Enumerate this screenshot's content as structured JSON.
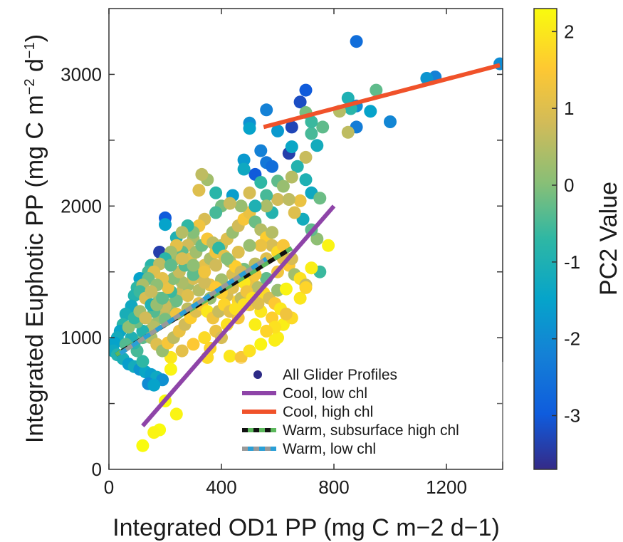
{
  "chart_data": {
    "type": "scatter",
    "xlabel": "Integrated OD1 PP (mg C m−2 d−1)",
    "ylabel": "Integrated Euphotic PP (mg C m",
    "ylabel_sup1": "−2",
    "ylabel_mid": " d",
    "ylabel_sup2": "−1",
    "ylabel_end": ")",
    "xlim": [
      0,
      1400
    ],
    "ylim": [
      0,
      3500
    ],
    "xticks": [
      0,
      400,
      800,
      1200
    ],
    "yticks": [
      0,
      1000,
      2000,
      3000
    ],
    "colorbar": {
      "label": "PC2 Value",
      "range": [
        -3.7,
        2.3
      ],
      "ticks": [
        -3,
        -2,
        -1,
        0,
        1,
        2
      ],
      "colormap": "parula"
    },
    "series": [
      {
        "name": "All Glider Profiles",
        "kind": "scatter",
        "color": "#2c2a86"
      },
      {
        "name": "Cool, low chl",
        "kind": "line",
        "color": "#8e44a8",
        "x": [
          120,
          800
        ],
        "y": [
          330,
          2000
        ]
      },
      {
        "name": "Cool, high chl",
        "kind": "line",
        "color": "#f0522a",
        "x": [
          550,
          1390
        ],
        "y": [
          2600,
          3070
        ]
      },
      {
        "name": "Warm, subsurface high chl",
        "kind": "line",
        "color": "#111111",
        "dash_color": "#5cb85c",
        "x": [
          25,
          650
        ],
        "y": [
          870,
          1680
        ]
      },
      {
        "name": "Warm, low chl",
        "kind": "line",
        "color": "#999999",
        "dash_color": "#2a9fd6",
        "x": [
          40,
          560
        ],
        "y": [
          880,
          1600
        ]
      }
    ],
    "points": [
      [
        880,
        3250,
        -2.6
      ],
      [
        1390,
        3080,
        -2.0
      ],
      [
        1160,
        2980,
        -2.2
      ],
      [
        1130,
        2970,
        -1.8
      ],
      [
        950,
        2880,
        -0.3
      ],
      [
        850,
        2820,
        -1.0
      ],
      [
        880,
        2760,
        -2.0
      ],
      [
        860,
        2740,
        -0.8
      ],
      [
        820,
        2720,
        0.5
      ],
      [
        930,
        2720,
        -1.5
      ],
      [
        1000,
        2640,
        -2.1
      ],
      [
        880,
        2600,
        -2.3
      ],
      [
        850,
        2560,
        0.6
      ],
      [
        760,
        2600,
        -0.3
      ],
      [
        720,
        2550,
        -0.5
      ],
      [
        700,
        2880,
        -3.0
      ],
      [
        680,
        2790,
        -3.2
      ],
      [
        650,
        2600,
        -3.3
      ],
      [
        640,
        2400,
        -3.4
      ],
      [
        560,
        2730,
        -2.2
      ],
      [
        600,
        2570,
        -1.7
      ],
      [
        700,
        2710,
        -0.1
      ],
      [
        720,
        2640,
        -0.6
      ],
      [
        740,
        2460,
        -1.2
      ],
      [
        650,
        2450,
        -1.4
      ],
      [
        700,
        2370,
        0.7
      ],
      [
        670,
        2300,
        -0.9
      ],
      [
        500,
        2630,
        -1.9
      ],
      [
        500,
        2590,
        -1.5
      ],
      [
        540,
        2420,
        -2.2
      ],
      [
        560,
        2330,
        -2.4
      ],
      [
        580,
        2300,
        -2.6
      ],
      [
        520,
        2240,
        -3.0
      ],
      [
        480,
        2350,
        -1.7
      ],
      [
        480,
        2280,
        -1.3
      ],
      [
        540,
        2180,
        -0.7
      ],
      [
        600,
        2190,
        -0.3
      ],
      [
        620,
        2150,
        0.2
      ],
      [
        650,
        2220,
        0.5
      ],
      [
        700,
        2200,
        -1.0
      ],
      [
        720,
        2100,
        -1.3
      ],
      [
        750,
        2060,
        -0.2
      ],
      [
        680,
        2040,
        1.2
      ],
      [
        600,
        2050,
        0.8
      ],
      [
        560,
        2080,
        -0.5
      ],
      [
        500,
        2100,
        0.9
      ],
      [
        440,
        2080,
        -1.6
      ],
      [
        400,
        2000,
        -0.1
      ],
      [
        350,
        2200,
        0.3
      ],
      [
        330,
        2240,
        0.6
      ],
      [
        320,
        2120,
        1.0
      ],
      [
        380,
        2100,
        -0.8
      ],
      [
        200,
        1910,
        -3.0
      ],
      [
        200,
        1860,
        -1.5
      ],
      [
        180,
        1650,
        -3.4
      ],
      [
        240,
        1760,
        -1.0
      ],
      [
        300,
        1750,
        0.4
      ],
      [
        280,
        1700,
        0.8
      ],
      [
        260,
        1650,
        -0.3
      ],
      [
        230,
        1590,
        0.2
      ],
      [
        150,
        1550,
        -0.8
      ],
      [
        140,
        1500,
        -0.5
      ],
      [
        110,
        1450,
        -1.5
      ],
      [
        100,
        1380,
        -0.7
      ],
      [
        90,
        1320,
        -0.9
      ],
      [
        80,
        1240,
        -1.3
      ],
      [
        60,
        1180,
        -1.1
      ],
      [
        50,
        1100,
        -0.8
      ],
      [
        40,
        1050,
        -1.4
      ],
      [
        30,
        1000,
        -1.2
      ],
      [
        20,
        960,
        -1.5
      ],
      [
        15,
        900,
        -1.3
      ],
      [
        30,
        870,
        -0.9
      ],
      [
        50,
        840,
        -1.1
      ],
      [
        70,
        800,
        -1.6
      ],
      [
        90,
        780,
        -1.2
      ],
      [
        110,
        760,
        -1.8
      ],
      [
        130,
        740,
        -1.4
      ],
      [
        150,
        720,
        -1.6
      ],
      [
        170,
        700,
        -1.3
      ],
      [
        190,
        680,
        -1.9
      ],
      [
        140,
        650,
        -2.0
      ],
      [
        160,
        640,
        -1.5
      ],
      [
        120,
        820,
        -0.7
      ],
      [
        100,
        900,
        -0.5
      ],
      [
        90,
        960,
        -0.8
      ],
      [
        120,
        1000,
        -0.3
      ],
      [
        140,
        1050,
        0.0
      ],
      [
        160,
        1100,
        0.4
      ],
      [
        180,
        1150,
        0.2
      ],
      [
        200,
        1200,
        0.6
      ],
      [
        220,
        1250,
        0.1
      ],
      [
        240,
        1300,
        0.5
      ],
      [
        260,
        1350,
        0.8
      ],
      [
        280,
        1400,
        0.3
      ],
      [
        300,
        1450,
        0.9
      ],
      [
        320,
        1500,
        0.7
      ],
      [
        340,
        1550,
        1.1
      ],
      [
        360,
        1600,
        0.4
      ],
      [
        380,
        1650,
        1.3
      ],
      [
        400,
        1700,
        0.6
      ],
      [
        420,
        1750,
        1.0
      ],
      [
        440,
        1800,
        0.2
      ],
      [
        460,
        1850,
        0.8
      ],
      [
        480,
        1900,
        1.4
      ],
      [
        500,
        1950,
        1.2
      ],
      [
        520,
        1880,
        -0.2
      ],
      [
        540,
        1820,
        0.5
      ],
      [
        560,
        1760,
        1.6
      ],
      [
        580,
        1700,
        0.9
      ],
      [
        600,
        1650,
        1.8
      ],
      [
        620,
        1600,
        1.1
      ],
      [
        640,
        1550,
        1.5
      ],
      [
        660,
        1480,
        0.3
      ],
      [
        680,
        1450,
        1.9
      ],
      [
        700,
        1400,
        0.7
      ],
      [
        560,
        1600,
        1.0
      ],
      [
        520,
        1560,
        0.6
      ],
      [
        480,
        1520,
        -0.1
      ],
      [
        440,
        1480,
        0.9
      ],
      [
        400,
        1440,
        0.3
      ],
      [
        360,
        1400,
        1.2
      ],
      [
        320,
        1360,
        0.5
      ],
      [
        280,
        1320,
        1.0
      ],
      [
        240,
        1280,
        -0.2
      ],
      [
        200,
        1240,
        0.7
      ],
      [
        160,
        1200,
        -0.4
      ],
      [
        180,
        1300,
        0.2
      ],
      [
        220,
        1350,
        -0.6
      ],
      [
        260,
        1420,
        0.4
      ],
      [
        300,
        1480,
        -0.3
      ],
      [
        340,
        1420,
        0.8
      ],
      [
        380,
        1380,
        1.5
      ],
      [
        420,
        1320,
        0.9
      ],
      [
        460,
        1280,
        1.7
      ],
      [
        500,
        1250,
        1.3
      ],
      [
        540,
        1200,
        2.0
      ],
      [
        580,
        1150,
        1.6
      ],
      [
        620,
        1100,
        2.1
      ],
      [
        460,
        1150,
        1.4
      ],
      [
        420,
        1100,
        1.9
      ],
      [
        380,
        1050,
        1.2
      ],
      [
        340,
        1000,
        1.8
      ],
      [
        300,
        950,
        1.5
      ],
      [
        260,
        900,
        1.1
      ],
      [
        220,
        850,
        2.0
      ],
      [
        400,
        1000,
        0.9
      ],
      [
        360,
        920,
        1.7
      ],
      [
        430,
        860,
        2.0
      ],
      [
        470,
        850,
        1.4
      ],
      [
        500,
        900,
        1.9
      ],
      [
        540,
        950,
        2.2
      ],
      [
        600,
        1000,
        2.1
      ],
      [
        650,
        1150,
        1.8
      ],
      [
        680,
        1300,
        2.0
      ],
      [
        700,
        1380,
        1.7
      ],
      [
        750,
        1500,
        -0.6
      ],
      [
        780,
        1700,
        2.2
      ],
      [
        740,
        1750,
        0.1
      ],
      [
        720,
        1820,
        -0.3
      ],
      [
        690,
        1900,
        -1.2
      ],
      [
        660,
        1950,
        1.0
      ],
      [
        640,
        2050,
        0.6
      ],
      [
        580,
        1950,
        -0.9
      ],
      [
        560,
        2000,
        0.4
      ],
      [
        520,
        2000,
        -1.0
      ],
      [
        470,
        2000,
        0.2
      ],
      [
        430,
        2020,
        0.7
      ],
      [
        380,
        1950,
        -0.5
      ],
      [
        340,
        1900,
        0.9
      ],
      [
        320,
        1850,
        1.3
      ],
      [
        300,
        1800,
        0.0
      ],
      [
        280,
        1850,
        -0.7
      ],
      [
        260,
        1800,
        0.5
      ],
      [
        240,
        1700,
        1.1
      ],
      [
        220,
        1650,
        0.3
      ],
      [
        200,
        1600,
        -0.8
      ],
      [
        180,
        1560,
        0.6
      ],
      [
        160,
        1500,
        1.0
      ],
      [
        140,
        1450,
        -0.2
      ],
      [
        120,
        1400,
        0.4
      ],
      [
        110,
        1350,
        -0.6
      ],
      [
        130,
        1300,
        0.9
      ],
      [
        150,
        1250,
        -1.0
      ],
      [
        170,
        1250,
        0.2
      ],
      [
        190,
        1300,
        -0.3
      ],
      [
        210,
        1380,
        1.2
      ],
      [
        230,
        1450,
        0.0
      ],
      [
        250,
        1500,
        0.7
      ],
      [
        270,
        1550,
        -0.4
      ],
      [
        290,
        1600,
        1.0
      ],
      [
        310,
        1650,
        0.3
      ],
      [
        330,
        1700,
        -0.2
      ],
      [
        350,
        1750,
        1.4
      ],
      [
        370,
        1720,
        0.6
      ],
      [
        390,
        1680,
        -0.7
      ],
      [
        410,
        1620,
        1.1
      ],
      [
        430,
        1580,
        0.4
      ],
      [
        450,
        1540,
        1.6
      ],
      [
        470,
        1500,
        0.8
      ],
      [
        490,
        1460,
        -0.5
      ],
      [
        510,
        1420,
        1.2
      ],
      [
        530,
        1380,
        0.5
      ],
      [
        550,
        1340,
        1.8
      ],
      [
        570,
        1300,
        0.9
      ],
      [
        590,
        1260,
        1.5
      ],
      [
        610,
        1220,
        2.0
      ],
      [
        630,
        1180,
        1.3
      ],
      [
        600,
        1360,
        0.2
      ],
      [
        560,
        1450,
        -0.3
      ],
      [
        520,
        1480,
        1.4
      ],
      [
        480,
        1420,
        2.0
      ],
      [
        440,
        1380,
        1.0
      ],
      [
        400,
        1340,
        1.6
      ],
      [
        360,
        1300,
        0.2
      ],
      [
        320,
        1260,
        1.1
      ],
      [
        280,
        1220,
        0.6
      ],
      [
        240,
        1180,
        1.3
      ],
      [
        200,
        1140,
        -0.1
      ],
      [
        160,
        1080,
        0.5
      ],
      [
        120,
        1050,
        -0.9
      ],
      [
        100,
        1120,
        -0.2
      ],
      [
        80,
        1000,
        -1.0
      ],
      [
        60,
        950,
        -0.4
      ],
      [
        70,
        1080,
        0.1
      ],
      [
        90,
        1150,
        -0.7
      ],
      [
        110,
        1200,
        0.3
      ],
      [
        130,
        1150,
        0.8
      ],
      [
        150,
        1000,
        0.4
      ],
      [
        170,
        950,
        1.0
      ],
      [
        190,
        900,
        0.2
      ],
      [
        210,
        960,
        1.4
      ],
      [
        230,
        1000,
        0.6
      ],
      [
        250,
        1050,
        1.2
      ],
      [
        270,
        1100,
        0.8
      ],
      [
        290,
        1150,
        1.6
      ],
      [
        310,
        1200,
        1.0
      ],
      [
        330,
        1250,
        1.5
      ],
      [
        350,
        1200,
        2.0
      ],
      [
        370,
        1150,
        1.3
      ],
      [
        390,
        1200,
        0.7
      ],
      [
        410,
        1250,
        1.7
      ],
      [
        430,
        1200,
        1.1
      ],
      [
        450,
        1220,
        1.9
      ],
      [
        470,
        1300,
        0.6
      ],
      [
        490,
        1350,
        1.3
      ],
      [
        510,
        1300,
        1.9
      ],
      [
        530,
        1260,
        1.0
      ],
      [
        590,
        1080,
        1.9
      ],
      [
        630,
        1370,
        2.2
      ],
      [
        720,
        1530,
        2.1
      ],
      [
        600,
        1500,
        1.3
      ],
      [
        650,
        1600,
        0.9
      ],
      [
        620,
        1700,
        1.4
      ],
      [
        580,
        1800,
        0.5
      ],
      [
        540,
        1700,
        1.2
      ],
      [
        500,
        1700,
        0.2
      ],
      [
        460,
        1650,
        1.0
      ],
      [
        420,
        1600,
        0.0
      ],
      [
        380,
        1550,
        0.8
      ],
      [
        340,
        1500,
        1.3
      ],
      [
        300,
        1550,
        0.1
      ],
      [
        260,
        1600,
        0.9
      ],
      [
        220,
        1550,
        -0.3
      ],
      [
        190,
        1450,
        1.1
      ],
      [
        170,
        1400,
        0.1
      ],
      [
        150,
        1350,
        0.7
      ],
      [
        590,
        980,
        2.1
      ],
      [
        350,
        850,
        1.8
      ],
      [
        220,
        760,
        2.2
      ],
      [
        200,
        520,
        2.3
      ],
      [
        240,
        420,
        2.2
      ],
      [
        180,
        300,
        2.3
      ],
      [
        160,
        280,
        2.2
      ],
      [
        120,
        180,
        2.3
      ],
      [
        480,
        1250,
        1.9
      ],
      [
        520,
        1100,
        2.1
      ],
      [
        560,
        1050,
        1.7
      ]
    ]
  }
}
